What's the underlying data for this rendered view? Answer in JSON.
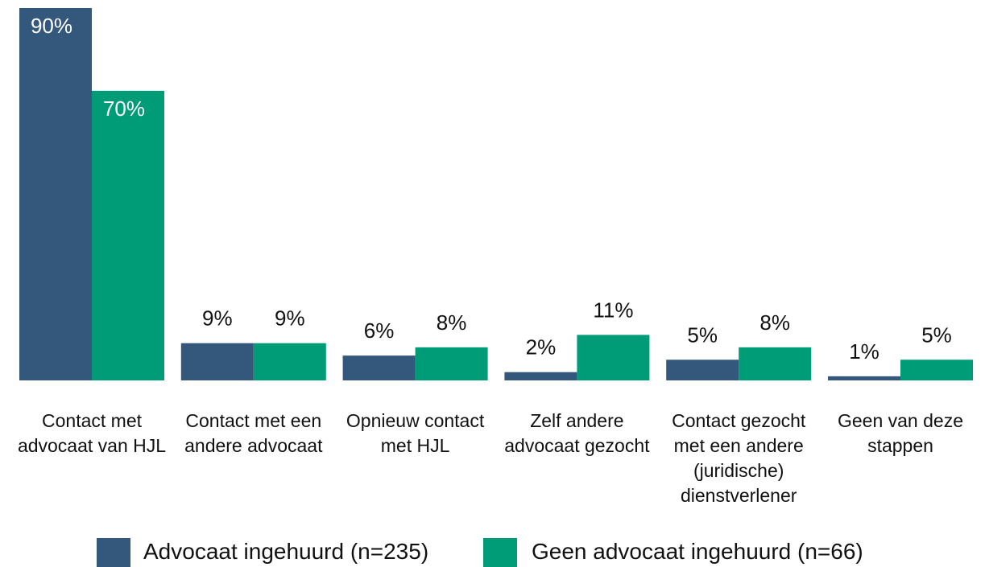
{
  "chart_data": {
    "type": "bar",
    "categories": [
      "Contact met advocaat van HJL",
      "Contact met een andere advocaat",
      "Opnieuw contact met HJL",
      "Zelf andere advocaat gezocht",
      "Contact gezocht met een andere (juridische) dienstverlener",
      "Geen van deze stappen"
    ],
    "series": [
      {
        "name": "Advocaat ingehuurd (n=235)",
        "color": "#34577c",
        "values": [
          90,
          9,
          6,
          2,
          5,
          1
        ],
        "value_labels": [
          "90%",
          "9%",
          "6%",
          "2%",
          "5%",
          "1%"
        ]
      },
      {
        "name": "Geen advocaat ingehuurd (n=66)",
        "color": "#009b77",
        "values": [
          70,
          9,
          8,
          11,
          8,
          5
        ],
        "value_labels": [
          "70%",
          "9%",
          "8%",
          "11%",
          "8%",
          "5%"
        ]
      }
    ]
  }
}
